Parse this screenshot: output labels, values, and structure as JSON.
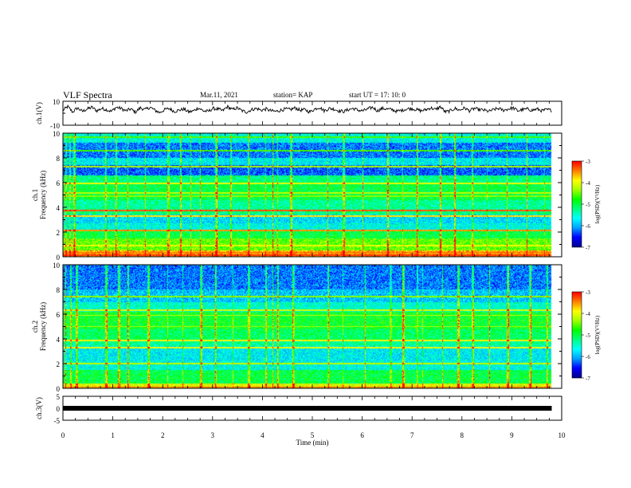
{
  "header": {
    "title": "VLF Spectra",
    "date": "Mar.11, 2021",
    "station": "station= KAP",
    "start": "start  UT =   17: 10: 0"
  },
  "chart_data": [
    {
      "type": "line",
      "name": "waveform-ch1",
      "ylabel": "ch.1(V)",
      "ylim": [
        -10,
        10
      ],
      "yticks": [
        "10",
        "-10"
      ],
      "xlim": [
        0,
        10
      ],
      "x_extent": [
        0,
        9.8
      ],
      "y": [
        2.5,
        5.5,
        1.0,
        4.5,
        1.5,
        3.5,
        5.0,
        2.0,
        4.0,
        3.0,
        1.5,
        5.0,
        4.0,
        2.0,
        3.5,
        1.0,
        4.5,
        3.0,
        5.0,
        2.5,
        0.5,
        3.0,
        4.0,
        1.5,
        2.5,
        3.5,
        1.0,
        2.0,
        4.5,
        2.0,
        1.5,
        4.0,
        3.5,
        2.0,
        5.5,
        3.0,
        4.5,
        2.0,
        1.0,
        3.0,
        4.0,
        2.5,
        3.5,
        2.0,
        1.5,
        2.5,
        3.5,
        3.0,
        4.5,
        2.5,
        3.0,
        1.0,
        3.5,
        5.0,
        2.0,
        4.0,
        3.5,
        2.0,
        1.5,
        3.0,
        4.0,
        2.5,
        2.0,
        3.5,
        5.0,
        2.0,
        4.0,
        3.5,
        3.0,
        1.5,
        2.5,
        3.5,
        4.0,
        3.0,
        2.0,
        3.0,
        4.5,
        3.0,
        5.5,
        1.0,
        2.0,
        4.0,
        2.5,
        4.5,
        2.0,
        4.0,
        3.0,
        2.5,
        1.5,
        3.0,
        4.0,
        2.5,
        3.5,
        4.5,
        2.0,
        3.0,
        3.5,
        2.5,
        3.5,
        2.0,
        3.0,
        2.5
      ]
    },
    {
      "type": "heatmap",
      "name": "spectrogram-ch1",
      "ylabel": "ch.1\nFrequency (kHz)",
      "ylim": [
        0,
        10
      ],
      "yticks": [
        "0",
        "2",
        "4",
        "6",
        "8",
        "10"
      ],
      "xlim": [
        0,
        10
      ],
      "x_extent": [
        0,
        9.8
      ],
      "colorbar": {
        "label": "log(PSD)(V²/Hz)",
        "range": [
          -7,
          -3
        ],
        "ticks": [
          "-3",
          "-4",
          "-5",
          "-6",
          "-7"
        ]
      },
      "frequency_bands": [
        {
          "from": 0,
          "to": 0.5,
          "level": -3.6
        },
        {
          "from": 0.5,
          "to": 1.5,
          "level": -4.5
        },
        {
          "from": 1.5,
          "to": 2.2,
          "level": -5.0
        },
        {
          "from": 2.2,
          "to": 2.7,
          "level": -5.6
        },
        {
          "from": 2.7,
          "to": 3.4,
          "level": -5.8
        },
        {
          "from": 3.4,
          "to": 3.8,
          "level": -5.2
        },
        {
          "from": 3.8,
          "to": 4.6,
          "level": -5.3
        },
        {
          "from": 4.6,
          "to": 6.0,
          "level": -5.0
        },
        {
          "from": 6.0,
          "to": 6.6,
          "level": -5.2
        },
        {
          "from": 6.6,
          "to": 7.4,
          "level": -6.3
        },
        {
          "from": 7.4,
          "to": 8.0,
          "level": -5.7
        },
        {
          "from": 8.0,
          "to": 9.2,
          "level": -6.2
        },
        {
          "from": 9.2,
          "to": 10.0,
          "level": -5.6
        }
      ],
      "lines": [
        {
          "f": 0.15,
          "level": -3.2
        },
        {
          "f": 0.35,
          "level": -3.5
        },
        {
          "f": 0.9,
          "level": -4.0
        },
        {
          "f": 2.15,
          "level": -3.5
        },
        {
          "f": 3.3,
          "level": -3.8
        },
        {
          "f": 3.75,
          "level": -3.3
        },
        {
          "f": 4.9,
          "level": -4.4
        },
        {
          "f": 5.15,
          "level": -4.2
        },
        {
          "f": 5.95,
          "level": -4.0
        },
        {
          "f": 7.3,
          "level": -4.3
        },
        {
          "f": 8.6,
          "level": -4.6
        },
        {
          "f": 9.7,
          "level": -4.6
        }
      ],
      "bursts_min": [
        0.05,
        0.12,
        0.2,
        0.85,
        1.05,
        1.3,
        1.65,
        2.1,
        2.35,
        2.55,
        2.75,
        3.05,
        3.35,
        3.7,
        4.05,
        4.2,
        4.3,
        4.55,
        5.3,
        5.6,
        6.0,
        6.5,
        6.8,
        7.1,
        7.55,
        7.85,
        8.2,
        8.5,
        8.9,
        9.3,
        9.65
      ]
    },
    {
      "type": "heatmap",
      "name": "spectrogram-ch2",
      "ylabel": "ch.2\nFrequency (kHz)",
      "ylim": [
        0,
        10
      ],
      "yticks": [
        "0",
        "2",
        "4",
        "6",
        "8",
        "10"
      ],
      "xlim": [
        0,
        10
      ],
      "x_extent": [
        0,
        9.8
      ],
      "colorbar": {
        "label": "log(PSD)(V²/Hz)",
        "range": [
          -7,
          -3
        ],
        "ticks": [
          "-3",
          "-4",
          "-5",
          "-6",
          "-7"
        ]
      },
      "frequency_bands": [
        {
          "from": 0,
          "to": 0.4,
          "level": -4.0
        },
        {
          "from": 0.4,
          "to": 1.5,
          "level": -5.0
        },
        {
          "from": 1.5,
          "to": 2.2,
          "level": -5.6
        },
        {
          "from": 2.2,
          "to": 3.4,
          "level": -5.7
        },
        {
          "from": 3.4,
          "to": 3.9,
          "level": -5.3
        },
        {
          "from": 3.9,
          "to": 4.8,
          "level": -5.1
        },
        {
          "from": 4.8,
          "to": 6.2,
          "level": -4.9
        },
        {
          "from": 6.2,
          "to": 7.0,
          "level": -5.5
        },
        {
          "from": 7.0,
          "to": 8.0,
          "level": -5.9
        },
        {
          "from": 8.0,
          "to": 10.0,
          "level": -6.2
        }
      ],
      "lines": [
        {
          "f": 0.1,
          "level": -3.3
        },
        {
          "f": 2.0,
          "level": -4.2
        },
        {
          "f": 3.3,
          "level": -4.0
        },
        {
          "f": 3.85,
          "level": -3.9
        },
        {
          "f": 5.0,
          "level": -4.3
        },
        {
          "f": 5.9,
          "level": -4.2
        },
        {
          "f": 6.35,
          "level": -4.1
        },
        {
          "f": 7.4,
          "level": -4.4
        }
      ],
      "bursts_min": [
        0.05,
        0.15,
        0.25,
        0.85,
        1.1,
        1.3,
        1.7,
        2.1,
        2.4,
        2.75,
        3.05,
        3.4,
        3.7,
        4.05,
        4.2,
        4.3,
        4.6,
        5.3,
        5.6,
        6.05,
        6.55,
        6.8,
        7.1,
        7.2,
        7.6,
        7.9,
        8.2,
        8.55,
        8.9,
        9.35,
        9.7
      ]
    },
    {
      "type": "line",
      "name": "waveform-ch3",
      "ylabel": "ch.3(V)",
      "ylim": [
        -5,
        5
      ],
      "yticks": [
        "5",
        "0",
        "-5"
      ],
      "xlim": [
        0,
        10
      ],
      "x_extent": [
        0,
        9.8
      ],
      "constant_value": 0,
      "xlabel": "Time  (min)",
      "xticks": [
        "0",
        "1",
        "2",
        "3",
        "4",
        "5",
        "6",
        "7",
        "8",
        "9",
        "10"
      ]
    }
  ],
  "colors": {
    "colormap": [
      "#000090",
      "#0000ff",
      "#00a0ff",
      "#00ffff",
      "#00ff80",
      "#00ff00",
      "#a0ff00",
      "#ffff00",
      "#ff8000",
      "#ff0000",
      "#ffffff"
    ],
    "frame": "#000000",
    "trace": "#000000"
  }
}
